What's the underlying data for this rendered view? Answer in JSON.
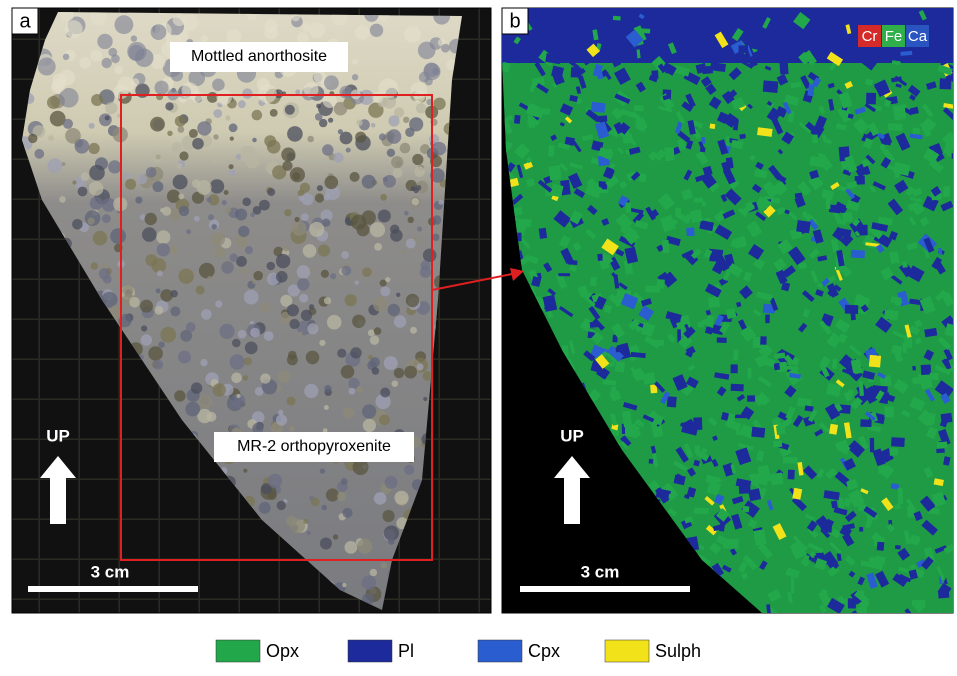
{
  "panels": [
    {
      "label": "a",
      "annotations": [
        "Mottled anorthosite",
        "MR-2 orthopyroxenite"
      ],
      "up": "UP",
      "scale": "3 cm"
    },
    {
      "label": "b",
      "up": "UP",
      "scale": "3 cm",
      "elements": [
        {
          "label": "Cr",
          "color": "#d42a2a"
        },
        {
          "label": "Fe",
          "color": "#2fae4a"
        },
        {
          "label": "Ca",
          "color": "#2a54c0"
        }
      ]
    }
  ],
  "legend": [
    {
      "label": "Opx",
      "color": "#22a84a"
    },
    {
      "label": "Pl",
      "color": "#1c2a9c"
    },
    {
      "label": "Cpx",
      "color": "#2a5ed0"
    },
    {
      "label": "Sulph",
      "color": "#f2e21a"
    }
  ]
}
